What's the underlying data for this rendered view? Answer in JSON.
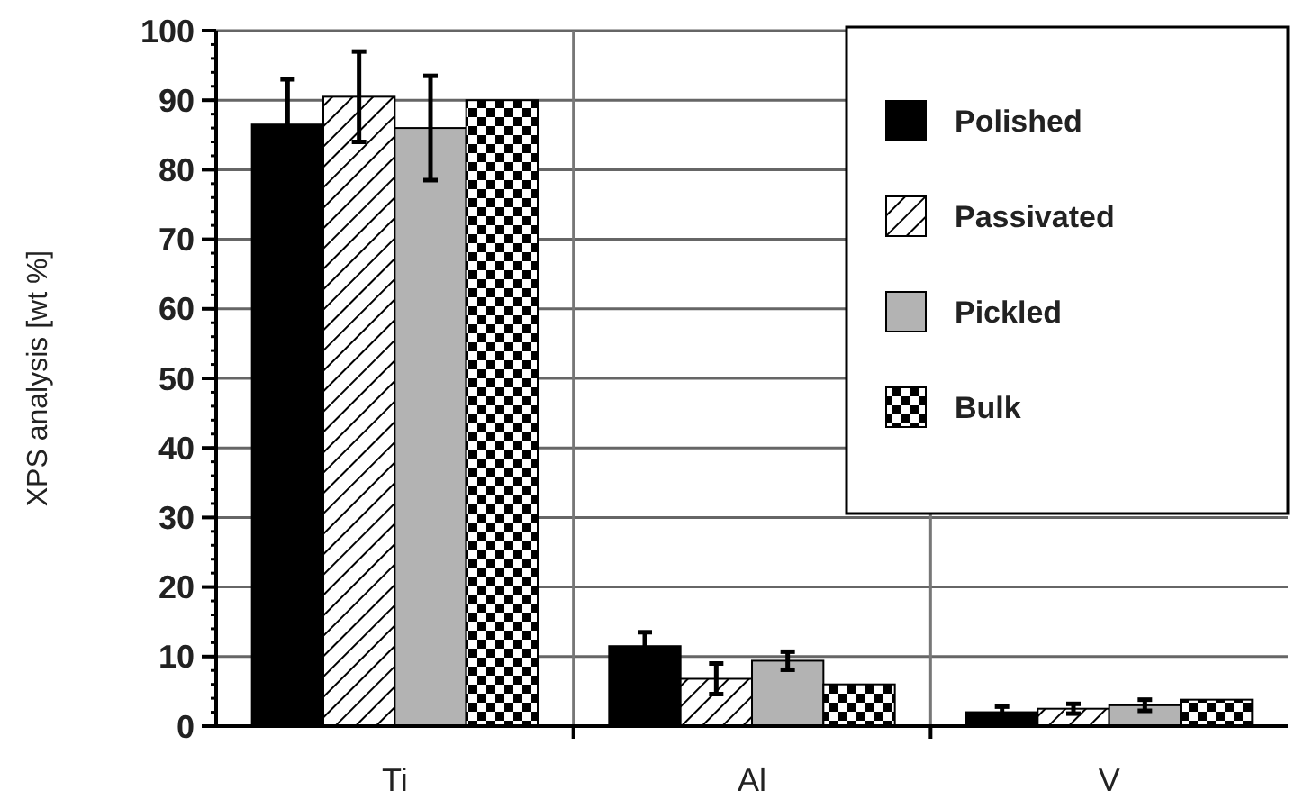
{
  "chart_data": {
    "type": "bar",
    "ylabel": "XPS analysis [wt %]",
    "categories": [
      "Ti",
      "Al",
      "V"
    ],
    "series": [
      {
        "name": "Polished",
        "color": "#000000",
        "values": [
          86.5,
          11.5,
          2
        ],
        "errors": [
          6.5,
          2,
          0.8
        ]
      },
      {
        "name": "Passivated",
        "color": "#000000",
        "values": [
          90.5,
          6.8,
          2.5
        ],
        "errors": [
          6.5,
          2.2,
          0.7
        ]
      },
      {
        "name": "Pickled",
        "color": "#b3b3b3",
        "values": [
          86,
          9.4,
          3
        ],
        "errors": [
          7.5,
          1.3,
          0.8
        ]
      },
      {
        "name": "Bulk",
        "color": "#000000",
        "values": [
          90,
          6,
          3.8
        ]
      }
    ],
    "ylim": [
      0,
      100
    ],
    "yticks": [
      0,
      10,
      20,
      30,
      40,
      50,
      60,
      70,
      80,
      90,
      100
    ],
    "grid": true,
    "legend": "top right"
  }
}
